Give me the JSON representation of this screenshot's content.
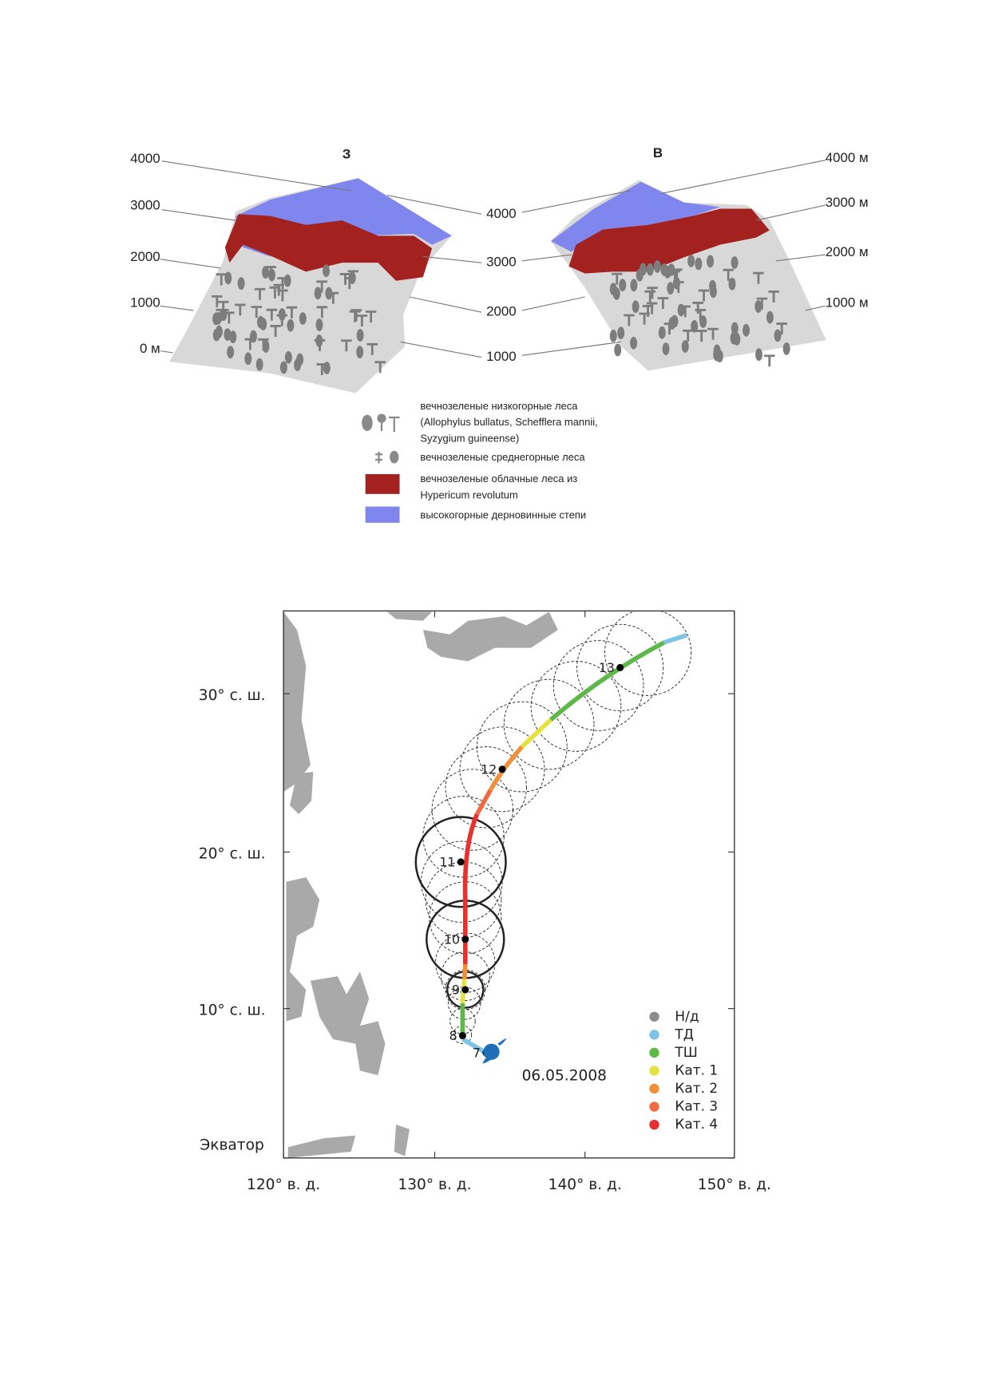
{
  "figure_1": {
    "west_label": "З",
    "east_label": "В",
    "left_scale": [
      "4000",
      "3000",
      "2000",
      "1000",
      "0 м"
    ],
    "middle_scale": [
      "4000",
      "3000",
      "2000",
      "1000"
    ],
    "right_scale": [
      "4000 м",
      "3000 м",
      "2000 м",
      "1000 м"
    ],
    "legend": [
      {
        "lines": [
          "вечнозеленые низкогорные леса",
          "(Allophylus bullatus, Schefflera mannii,",
          "Syzygium guineense)"
        ]
      },
      {
        "lines": [
          "вечнозеленые среднегорные леса"
        ]
      },
      {
        "lines": [
          "вечнозеленые облачные леса из",
          "Hypericum revolutum"
        ],
        "color": "#a3211f"
      },
      {
        "lines": [
          "высокогорные дерновинные степи"
        ],
        "color": "#7f86ee"
      }
    ]
  },
  "figure_2": {
    "latitude_labels": [
      "30° с. ш.",
      "20° с. ш.",
      "10° с. ш.",
      "Экватор"
    ],
    "longitude_labels": [
      "120° в. д.",
      "130° в. д.",
      "140° в. д.",
      "150° в. д."
    ],
    "track_points": [
      "7",
      "8",
      "9",
      "10",
      "11",
      "12",
      "13"
    ],
    "date": "06.05.2008",
    "legend": [
      {
        "label": "Н/д",
        "color": "#8c8c8c"
      },
      {
        "label": "ТД",
        "color": "#7ec3e8"
      },
      {
        "label": "ТШ",
        "color": "#5db847"
      },
      {
        "label": "Кат. 1",
        "color": "#e5e23c"
      },
      {
        "label": "Кат. 2",
        "color": "#f0913a"
      },
      {
        "label": "Кат. 3",
        "color": "#f26a42"
      },
      {
        "label": "Кат. 4",
        "color": "#e8312e"
      }
    ]
  }
}
